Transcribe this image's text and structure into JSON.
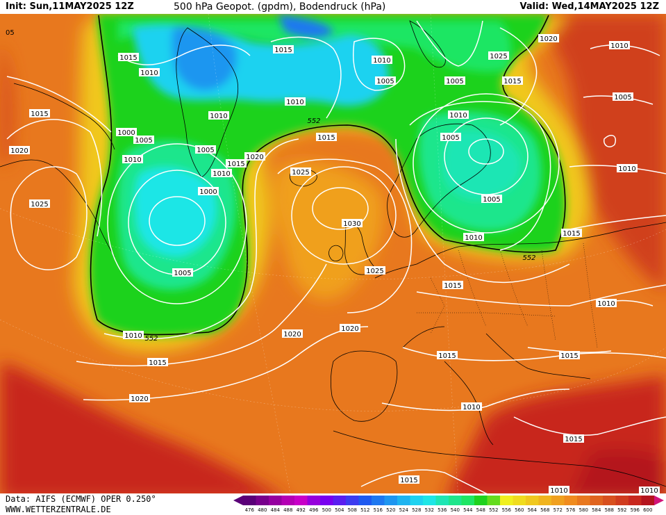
{
  "header": {
    "init": "Init: Sun,11MAY2025 12Z",
    "title": "500 hPa Geopot. (gpdm), Bodendruck (hPa)",
    "valid": "Valid: Wed,14MAY2025 12Z"
  },
  "footer": {
    "data_source": "Data: AIFS (ECMWF) OPER 0.250°",
    "website": "WWW.WETTERZENTRALE.DE"
  },
  "colors": {
    "background_field": "#e8781e",
    "deep_red": "#c8281e",
    "yellow": "#f0e61e",
    "green": "#1ed21e",
    "cyan": "#1ee6e6",
    "blue": "#3c8cf0",
    "isobar": "#ffffff",
    "contour_552": "#000000"
  },
  "scale": {
    "values": [
      "476",
      "480",
      "484",
      "488",
      "492",
      "496",
      "500",
      "504",
      "508",
      "512",
      "516",
      "520",
      "524",
      "528",
      "532",
      "536",
      "540",
      "544",
      "548",
      "552",
      "556",
      "560",
      "564",
      "568",
      "572",
      "576",
      "580",
      "584",
      "588",
      "592",
      "596",
      "600"
    ],
    "colors": [
      "#5a0078",
      "#78008c",
      "#9600a0",
      "#b400b4",
      "#c800c8",
      "#9600dc",
      "#7800f0",
      "#5a1ef0",
      "#3c3cf0",
      "#1e5af0",
      "#1e78f0",
      "#1e96f0",
      "#1eb4f0",
      "#1ed2f0",
      "#1ee6e6",
      "#1ee6b4",
      "#1ee68c",
      "#1ee664",
      "#1ed21e",
      "#64dc1e",
      "#f0f01e",
      "#f0dc1e",
      "#f0c81e",
      "#f0b41e",
      "#f0a01e",
      "#f08c1e",
      "#e8781e",
      "#e0641e",
      "#d8501e",
      "#d03c1e",
      "#c8281e",
      "#b4141e"
    ]
  },
  "isobar_labels": [
    {
      "text": "1015"
    },
    {
      "text": "1010"
    },
    {
      "text": "1015"
    },
    {
      "text": "1000"
    },
    {
      "text": "1005"
    },
    {
      "text": "1010"
    },
    {
      "text": "1020"
    },
    {
      "text": "1025"
    },
    {
      "text": "1015"
    },
    {
      "text": "1010"
    },
    {
      "text": "1005"
    },
    {
      "text": "1010"
    },
    {
      "text": "1015"
    },
    {
      "text": "1020"
    },
    {
      "text": "1000"
    },
    {
      "text": "1005"
    },
    {
      "text": "1010"
    },
    {
      "text": "1015"
    },
    {
      "text": "1020"
    },
    {
      "text": "1015"
    },
    {
      "text": "1010"
    },
    {
      "text": "1025"
    },
    {
      "text": "1030"
    },
    {
      "text": "1025"
    },
    {
      "text": "1020"
    },
    {
      "text": "1020"
    },
    {
      "text": "1015"
    },
    {
      "text": "1020"
    },
    {
      "text": "1010"
    },
    {
      "text": "1025"
    },
    {
      "text": "1015"
    },
    {
      "text": "1010"
    },
    {
      "text": "1005"
    },
    {
      "text": "1005"
    },
    {
      "text": "1010"
    },
    {
      "text": "1015"
    },
    {
      "text": "1015"
    },
    {
      "text": "1010"
    },
    {
      "text": "1015"
    },
    {
      "text": "1015"
    },
    {
      "text": "1010"
    },
    {
      "text": "1015"
    },
    {
      "text": "1005"
    },
    {
      "text": "1010"
    },
    {
      "text": "1010"
    },
    {
      "text": "1005"
    },
    {
      "text": "1005"
    },
    {
      "text": "1010"
    },
    {
      "text": "1010"
    }
  ],
  "geopot_labels": [
    {
      "text": "552"
    },
    {
      "text": "552"
    },
    {
      "text": "552"
    }
  ],
  "edge_labels": [
    {
      "text": "05"
    }
  ]
}
